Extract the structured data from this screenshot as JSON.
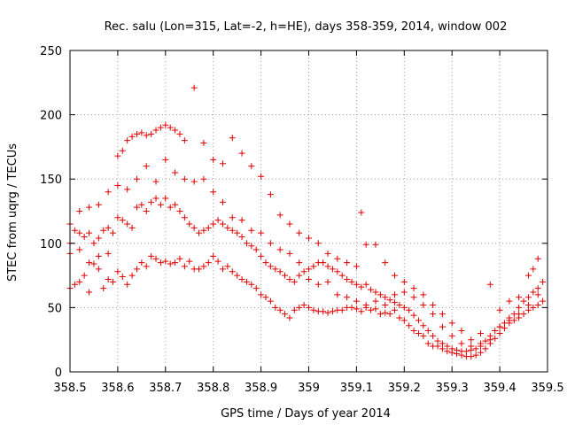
{
  "chart_data": {
    "type": "scatter",
    "title": "Rec. salu (Lon=315, Lat=-2, h=HE), days 358-359, 2014, window 002",
    "xlabel": "GPS time / Days of year 2014",
    "ylabel": "STEC from uqrg / TECUs",
    "xlim": [
      358.5,
      359.5
    ],
    "ylim": [
      0,
      250
    ],
    "x_ticks": [
      358.5,
      358.6,
      358.7,
      358.8,
      358.9,
      359.0,
      359.1,
      359.2,
      359.3,
      359.4,
      359.5
    ],
    "x_tick_labels": [
      "358.5",
      "358.6",
      "358.7",
      "358.8",
      "358.9",
      "359",
      "359.1",
      "359.2",
      "359.3",
      "359.4",
      "359.5"
    ],
    "y_ticks": [
      0,
      50,
      100,
      150,
      200,
      250
    ],
    "y_tick_labels": [
      "0",
      "50",
      "100",
      "150",
      "200",
      "250"
    ],
    "grid": true,
    "marker": "+",
    "color": "#e00000",
    "points": [
      [
        358.5,
        65
      ],
      [
        358.51,
        68
      ],
      [
        358.52,
        70
      ],
      [
        358.53,
        75
      ],
      [
        358.54,
        62
      ],
      [
        358.55,
        84
      ],
      [
        358.56,
        80
      ],
      [
        358.57,
        65
      ],
      [
        358.58,
        72
      ],
      [
        358.59,
        70
      ],
      [
        358.6,
        78
      ],
      [
        358.61,
        74
      ],
      [
        358.62,
        68
      ],
      [
        358.63,
        75
      ],
      [
        358.64,
        80
      ],
      [
        358.65,
        85
      ],
      [
        358.66,
        82
      ],
      [
        358.67,
        90
      ],
      [
        358.68,
        88
      ],
      [
        358.69,
        85
      ],
      [
        358.7,
        86
      ],
      [
        358.71,
        84
      ],
      [
        358.72,
        85
      ],
      [
        358.73,
        88
      ],
      [
        358.74,
        82
      ],
      [
        358.75,
        86
      ],
      [
        358.76,
        80
      ],
      [
        358.77,
        80
      ],
      [
        358.78,
        82
      ],
      [
        358.79,
        85
      ],
      [
        358.8,
        90
      ],
      [
        358.81,
        86
      ],
      [
        358.82,
        80
      ],
      [
        358.83,
        82
      ],
      [
        358.84,
        78
      ],
      [
        358.85,
        75
      ],
      [
        358.86,
        72
      ],
      [
        358.87,
        70
      ],
      [
        358.88,
        68
      ],
      [
        358.89,
        65
      ],
      [
        358.9,
        60
      ],
      [
        358.91,
        58
      ],
      [
        358.92,
        55
      ],
      [
        358.93,
        50
      ],
      [
        358.94,
        48
      ],
      [
        358.95,
        45
      ],
      [
        358.96,
        42
      ],
      [
        358.97,
        48
      ],
      [
        358.98,
        50
      ],
      [
        358.99,
        52
      ],
      [
        359.0,
        50
      ],
      [
        359.01,
        48
      ],
      [
        359.02,
        47
      ],
      [
        359.03,
        47
      ],
      [
        359.04,
        46
      ],
      [
        359.05,
        47
      ],
      [
        359.06,
        48
      ],
      [
        359.07,
        48
      ],
      [
        359.08,
        50
      ],
      [
        359.09,
        50
      ],
      [
        359.1,
        49
      ],
      [
        359.11,
        47
      ],
      [
        359.12,
        50
      ],
      [
        359.13,
        48
      ],
      [
        359.14,
        49
      ],
      [
        359.15,
        45
      ],
      [
        359.16,
        46
      ],
      [
        359.17,
        45
      ],
      [
        359.18,
        48
      ],
      [
        359.19,
        42
      ],
      [
        359.2,
        40
      ],
      [
        359.21,
        36
      ],
      [
        359.22,
        32
      ],
      [
        359.23,
        30
      ],
      [
        359.24,
        28
      ],
      [
        359.25,
        22
      ],
      [
        359.26,
        20
      ],
      [
        359.27,
        20
      ],
      [
        359.28,
        18
      ],
      [
        359.29,
        16
      ],
      [
        359.3,
        15
      ],
      [
        359.31,
        14
      ],
      [
        359.32,
        13
      ],
      [
        359.33,
        12
      ],
      [
        359.34,
        12
      ],
      [
        359.35,
        13
      ],
      [
        359.36,
        15
      ],
      [
        359.37,
        18
      ],
      [
        359.38,
        22
      ],
      [
        359.39,
        26
      ],
      [
        359.4,
        30
      ],
      [
        359.41,
        34
      ],
      [
        359.42,
        38
      ],
      [
        359.43,
        40
      ],
      [
        359.44,
        42
      ],
      [
        359.45,
        45
      ],
      [
        359.46,
        48
      ],
      [
        359.47,
        50
      ],
      [
        359.48,
        52
      ],
      [
        359.49,
        55
      ],
      [
        358.5,
        100
      ],
      [
        358.51,
        110
      ],
      [
        358.52,
        95
      ],
      [
        358.53,
        105
      ],
      [
        358.54,
        108
      ],
      [
        358.55,
        100
      ],
      [
        358.56,
        104
      ],
      [
        358.57,
        110
      ],
      [
        358.58,
        112
      ],
      [
        358.59,
        108
      ],
      [
        358.6,
        120
      ],
      [
        358.61,
        118
      ],
      [
        358.62,
        115
      ],
      [
        358.63,
        112
      ],
      [
        358.64,
        128
      ],
      [
        358.65,
        130
      ],
      [
        358.66,
        125
      ],
      [
        358.67,
        132
      ],
      [
        358.68,
        135
      ],
      [
        358.69,
        130
      ],
      [
        358.7,
        135
      ],
      [
        358.71,
        128
      ],
      [
        358.72,
        130
      ],
      [
        358.73,
        125
      ],
      [
        358.74,
        120
      ],
      [
        358.75,
        115
      ],
      [
        358.76,
        112
      ],
      [
        358.77,
        108
      ],
      [
        358.78,
        110
      ],
      [
        358.79,
        112
      ],
      [
        358.8,
        115
      ],
      [
        358.81,
        118
      ],
      [
        358.82,
        115
      ],
      [
        358.83,
        112
      ],
      [
        358.84,
        110
      ],
      [
        358.85,
        108
      ],
      [
        358.86,
        105
      ],
      [
        358.87,
        100
      ],
      [
        358.88,
        98
      ],
      [
        358.89,
        95
      ],
      [
        358.9,
        90
      ],
      [
        358.91,
        85
      ],
      [
        358.92,
        82
      ],
      [
        358.93,
        80
      ],
      [
        358.94,
        78
      ],
      [
        358.95,
        75
      ],
      [
        358.96,
        72
      ],
      [
        358.97,
        70
      ],
      [
        358.98,
        75
      ],
      [
        358.99,
        78
      ],
      [
        359.0,
        80
      ],
      [
        359.01,
        82
      ],
      [
        359.02,
        85
      ],
      [
        359.03,
        85
      ],
      [
        359.04,
        82
      ],
      [
        359.05,
        80
      ],
      [
        359.06,
        78
      ],
      [
        359.07,
        75
      ],
      [
        359.08,
        72
      ],
      [
        359.09,
        70
      ],
      [
        359.1,
        68
      ],
      [
        359.11,
        66
      ],
      [
        359.12,
        68
      ],
      [
        359.13,
        64
      ],
      [
        359.14,
        62
      ],
      [
        359.15,
        60
      ],
      [
        359.16,
        58
      ],
      [
        359.17,
        56
      ],
      [
        359.18,
        54
      ],
      [
        359.19,
        52
      ],
      [
        359.2,
        50
      ],
      [
        359.21,
        48
      ],
      [
        359.22,
        44
      ],
      [
        359.23,
        40
      ],
      [
        359.24,
        36
      ],
      [
        359.25,
        32
      ],
      [
        359.26,
        28
      ],
      [
        359.27,
        24
      ],
      [
        359.28,
        22
      ],
      [
        359.29,
        20
      ],
      [
        359.3,
        18
      ],
      [
        359.31,
        17
      ],
      [
        359.32,
        16
      ],
      [
        359.33,
        16
      ],
      [
        359.34,
        17
      ],
      [
        359.35,
        18
      ],
      [
        359.36,
        20
      ],
      [
        359.37,
        24
      ],
      [
        359.38,
        28
      ],
      [
        359.39,
        32
      ],
      [
        359.4,
        35
      ],
      [
        359.41,
        38
      ],
      [
        359.42,
        42
      ],
      [
        359.43,
        45
      ],
      [
        359.44,
        50
      ],
      [
        359.45,
        55
      ],
      [
        359.46,
        58
      ],
      [
        359.47,
        62
      ],
      [
        359.48,
        65
      ],
      [
        359.49,
        70
      ],
      [
        358.5,
        92
      ],
      [
        358.52,
        125
      ],
      [
        358.54,
        128
      ],
      [
        358.56,
        130
      ],
      [
        358.58,
        140
      ],
      [
        358.6,
        168
      ],
      [
        358.61,
        172
      ],
      [
        358.62,
        180
      ],
      [
        358.63,
        183
      ],
      [
        358.64,
        185
      ],
      [
        358.65,
        186
      ],
      [
        358.66,
        184
      ],
      [
        358.67,
        185
      ],
      [
        358.68,
        188
      ],
      [
        358.69,
        190
      ],
      [
        358.7,
        192
      ],
      [
        358.71,
        190
      ],
      [
        358.72,
        188
      ],
      [
        358.73,
        185
      ],
      [
        358.74,
        180
      ],
      [
        358.76,
        221
      ],
      [
        358.78,
        178
      ],
      [
        358.8,
        165
      ],
      [
        358.82,
        162
      ],
      [
        358.84,
        182
      ],
      [
        358.86,
        170
      ],
      [
        358.88,
        160
      ],
      [
        358.9,
        152
      ],
      [
        358.92,
        138
      ],
      [
        358.94,
        122
      ],
      [
        358.96,
        115
      ],
      [
        358.98,
        108
      ],
      [
        359.0,
        104
      ],
      [
        359.02,
        100
      ],
      [
        359.04,
        92
      ],
      [
        359.06,
        88
      ],
      [
        359.08,
        85
      ],
      [
        359.1,
        82
      ],
      [
        359.11,
        124
      ],
      [
        359.12,
        99
      ],
      [
        359.14,
        99
      ],
      [
        359.16,
        85
      ],
      [
        359.18,
        75
      ],
      [
        359.2,
        70
      ],
      [
        359.22,
        65
      ],
      [
        359.24,
        60
      ],
      [
        359.26,
        52
      ],
      [
        359.28,
        45
      ],
      [
        359.3,
        38
      ],
      [
        359.32,
        32
      ],
      [
        359.34,
        25
      ],
      [
        359.36,
        30
      ],
      [
        359.38,
        68
      ],
      [
        359.4,
        48
      ],
      [
        359.42,
        55
      ],
      [
        359.44,
        58
      ],
      [
        359.46,
        75
      ],
      [
        359.47,
        80
      ],
      [
        359.48,
        88
      ],
      [
        358.5,
        115
      ],
      [
        358.52,
        108
      ],
      [
        358.54,
        85
      ],
      [
        358.56,
        90
      ],
      [
        358.58,
        92
      ],
      [
        358.6,
        145
      ],
      [
        358.62,
        142
      ],
      [
        358.64,
        150
      ],
      [
        358.66,
        160
      ],
      [
        358.68,
        148
      ],
      [
        358.7,
        165
      ],
      [
        358.72,
        155
      ],
      [
        358.74,
        150
      ],
      [
        358.76,
        148
      ],
      [
        358.78,
        150
      ],
      [
        358.8,
        140
      ],
      [
        358.82,
        132
      ],
      [
        358.84,
        120
      ],
      [
        358.86,
        118
      ],
      [
        358.88,
        110
      ],
      [
        358.9,
        108
      ],
      [
        358.92,
        100
      ],
      [
        358.94,
        95
      ],
      [
        358.96,
        92
      ],
      [
        358.98,
        85
      ],
      [
        359.0,
        72
      ],
      [
        359.02,
        68
      ],
      [
        359.04,
        70
      ],
      [
        359.06,
        60
      ],
      [
        359.08,
        58
      ],
      [
        359.1,
        55
      ],
      [
        359.12,
        52
      ],
      [
        359.14,
        55
      ],
      [
        359.16,
        52
      ],
      [
        359.18,
        60
      ],
      [
        359.2,
        62
      ],
      [
        359.22,
        58
      ],
      [
        359.24,
        52
      ],
      [
        359.26,
        45
      ],
      [
        359.28,
        35
      ],
      [
        359.3,
        28
      ],
      [
        359.32,
        22
      ],
      [
        359.34,
        20
      ],
      [
        359.36,
        22
      ],
      [
        359.38,
        25
      ],
      [
        359.4,
        35
      ],
      [
        359.42,
        40
      ],
      [
        359.44,
        45
      ],
      [
        359.46,
        52
      ],
      [
        359.48,
        60
      ]
    ]
  }
}
